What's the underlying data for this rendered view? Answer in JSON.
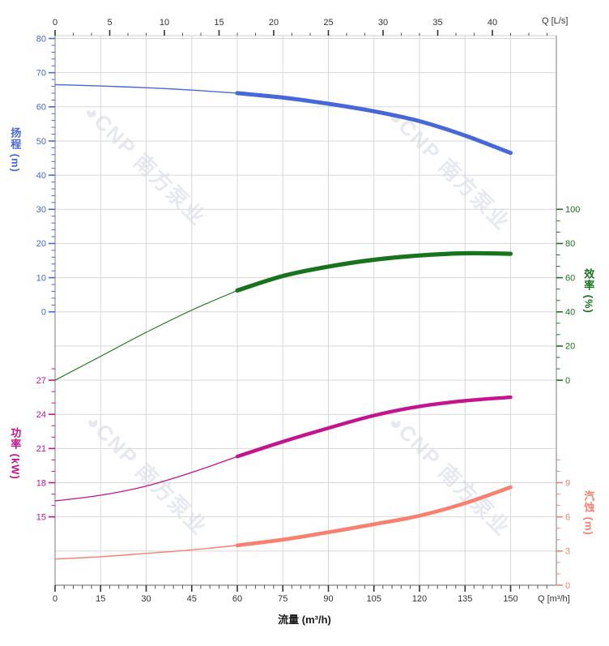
{
  "watermark": {
    "text": "◕CNP 南方泵业",
    "color": "#e7e9f0"
  },
  "axis_titles": {
    "head": "扬程 (m)",
    "power": "功率 (kW)",
    "efficiency": "效率 (%)",
    "npsh": "汽蚀 (m)",
    "flow_bottom": "流量 (m³/h)",
    "top_unit": "Q [L/s]",
    "bottom_unit": "Q [m³/h]"
  },
  "chart_data": {
    "type": "line",
    "title": "",
    "x_flow_m3h": [
      0,
      15,
      30,
      45,
      60,
      75,
      90,
      105,
      120,
      135,
      150
    ],
    "bold_from_x": 60,
    "grid": true,
    "top_axis": {
      "unit": "L/s",
      "ticks": [
        0,
        5,
        10,
        15,
        20,
        25,
        30,
        35,
        40
      ],
      "color": "#333333"
    },
    "bottom_axis": {
      "unit": "m³/h",
      "ticks": [
        0,
        15,
        30,
        45,
        60,
        75,
        90,
        105,
        120,
        135,
        150
      ],
      "color": "#333333"
    },
    "series": [
      {
        "name": "扬程",
        "unit": "m",
        "color": "#4668d8",
        "axis_side": "left",
        "axis_ticks": [
          80,
          70,
          60,
          50,
          40,
          30,
          20,
          10,
          0
        ],
        "axis_range": [
          0,
          80
        ],
        "rows": [
          8,
          0
        ],
        "minor_step": 2,
        "minor_above": 0,
        "thin": 1.4,
        "thick": 5,
        "values": [
          66.5,
          66.1,
          65.6,
          64.9,
          64.0,
          62.7,
          60.9,
          58.7,
          55.8,
          51.6,
          46.5
        ]
      },
      {
        "name": "效率",
        "unit": "%",
        "color": "#17741c",
        "axis_side": "right",
        "axis_ticks": [
          100,
          80,
          60,
          40,
          20,
          0
        ],
        "axis_range": [
          0,
          100
        ],
        "rows": [
          10,
          5
        ],
        "minor_step": 6.6667,
        "minor_above": 0,
        "thin": 1.1,
        "thick": 5.2,
        "values": [
          0,
          14,
          28,
          41,
          52.5,
          61,
          66.5,
          70.5,
          73,
          74.3,
          74
        ]
      },
      {
        "name": "功率",
        "unit": "kW",
        "color": "#c4138c",
        "axis_side": "left",
        "axis_ticks": [
          27,
          24,
          21,
          18,
          15
        ],
        "axis_range": [
          15,
          27
        ],
        "rows": [
          14,
          10
        ],
        "minor_step": 1,
        "minor_above": 1,
        "thin": 1.3,
        "thick": 4.4,
        "values": [
          16.4,
          16.9,
          17.7,
          18.9,
          20.3,
          21.6,
          22.8,
          23.9,
          24.7,
          25.2,
          25.5
        ]
      },
      {
        "name": "汽蚀",
        "unit": "m",
        "color": "#f8806f",
        "axis_side": "right",
        "axis_ticks": [
          9,
          6,
          3,
          0
        ],
        "axis_range": [
          0,
          9
        ],
        "rows": [
          16,
          13
        ],
        "minor_step": 1,
        "minor_above": 2,
        "thin": 1.4,
        "thick": 4.6,
        "values": [
          2.3,
          2.5,
          2.8,
          3.1,
          3.5,
          4.0,
          4.65,
          5.35,
          6.1,
          7.2,
          8.6
        ]
      }
    ]
  }
}
